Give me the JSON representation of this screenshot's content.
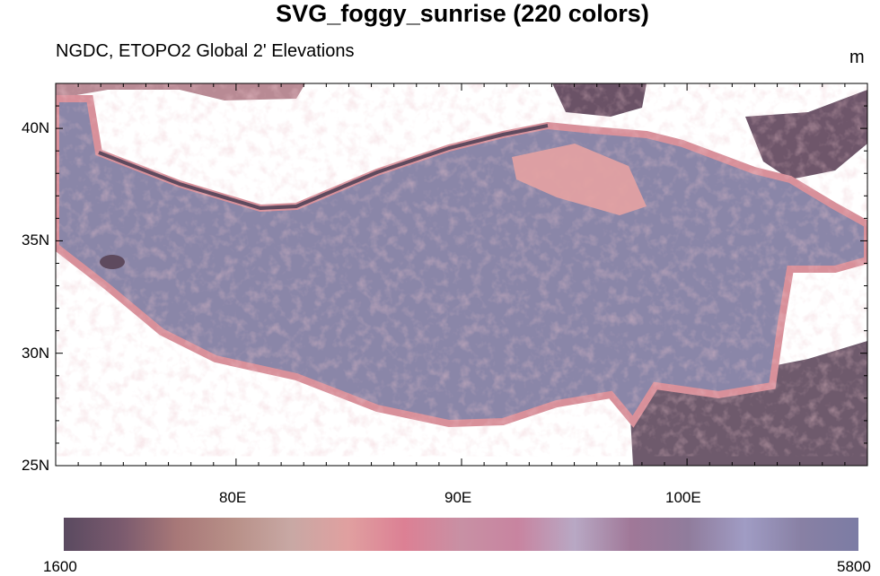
{
  "title": "SVG_foggy_sunrise (220 colors)",
  "subtitle": "NGDC, ETOPO2 Global 2' Elevations",
  "units": "m",
  "chart_data": {
    "type": "heatmap",
    "title": "SVG_foggy_sunrise (220 colors)",
    "subtitle": "NGDC, ETOPO2 Global 2' Elevations",
    "variable": "elevation",
    "units": "m",
    "lon_range": [
      72,
      108
    ],
    "lat_range": [
      25,
      42
    ],
    "lat_ticks": [
      "25N",
      "30N",
      "35N",
      "40N"
    ],
    "lon_ticks": [
      "80E",
      "90E",
      "100E"
    ],
    "colorbar": {
      "min_label": "1600",
      "max_label": "5800",
      "range": [
        1600,
        5800
      ],
      "colors": [
        "#5a4a60",
        "#7a5a6e",
        "#a87878",
        "#b89088",
        "#c8a8a4",
        "#e0a0a0",
        "#dc8094",
        "#c890a4",
        "#c884a0",
        "#b8a8c4",
        "#a07898",
        "#907c9c",
        "#a09cc4",
        "#8880a4",
        "#7c7ca4"
      ]
    }
  }
}
